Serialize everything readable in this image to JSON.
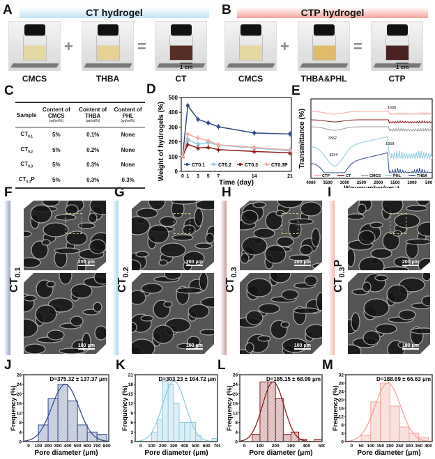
{
  "panels": {
    "A": "A",
    "B": "B",
    "C": "C",
    "D": "D",
    "E": "E",
    "F": "F",
    "G": "G",
    "H": "H",
    "I": "I",
    "J": "J",
    "K": "K",
    "L": "L",
    "M": "M"
  },
  "panel_a": {
    "title": "CT hydrogel",
    "banner_color": "#bfe3f5",
    "labels": [
      "CMCS",
      "THBA",
      "CT"
    ],
    "operators": [
      "+",
      "="
    ],
    "scale": "1 cm"
  },
  "panel_b": {
    "title": "CTP hydrogel",
    "banner_color": "#f5a59a",
    "labels": [
      "CMCS",
      "THBA&PHL",
      "CTP"
    ],
    "operators": [
      "+",
      "="
    ],
    "scale": "1 cm"
  },
  "table": {
    "headers": [
      {
        "t": "Sample",
        "s": ""
      },
      {
        "t": "Content of CMCS",
        "s": "(wt/vol%)"
      },
      {
        "t": "Content of THBA",
        "s": "(wt/vol%)"
      },
      {
        "t": "Content of PHL",
        "s": "(wt/vol%)"
      }
    ],
    "rows": [
      [
        "CT",
        "0.1",
        "",
        "5%",
        "0.1%",
        "None"
      ],
      [
        "CT",
        "0.2",
        "",
        "5%",
        "0.2%",
        "None"
      ],
      [
        "CT",
        "0.3",
        "",
        "5%",
        "0.3%",
        "None"
      ],
      [
        "CT",
        "0.3",
        "P",
        "5%",
        "0.3%",
        "0.3%"
      ]
    ]
  },
  "sem": [
    {
      "label": "CT",
      "sub": "0.1",
      "suffix": "",
      "bar_color": "#9aa3c7",
      "scale_top": "200 μm",
      "scale_bottom": "100 μm"
    },
    {
      "label": "CT",
      "sub": "0.2",
      "suffix": "",
      "bar_color": "#a8d8ec",
      "scale_top": "200 μm",
      "scale_bottom": "100 μm"
    },
    {
      "label": "CT",
      "sub": "0.3",
      "suffix": "",
      "bar_color": "#c99a9a",
      "scale_top": "200 μm",
      "scale_bottom": "100 μm"
    },
    {
      "label": "CT",
      "sub": "0.3",
      "suffix": "P",
      "bar_color": "#f3b8ae",
      "scale_top": "200 μm",
      "scale_bottom": "100 μm"
    }
  ],
  "chart_data": [
    {
      "id": "D",
      "type": "line",
      "xlabel": "Time (day)",
      "ylabel": "Weight of hydrogels (%)",
      "xlim": [
        0,
        21
      ],
      "ylim": [
        0,
        500
      ],
      "xticks": [
        0,
        1,
        3,
        5,
        7,
        14,
        21
      ],
      "yticks": [
        0,
        100,
        200,
        300,
        400,
        500
      ],
      "legend": "bottom",
      "x": [
        0,
        1,
        3,
        5,
        7,
        14,
        21
      ],
      "series": [
        {
          "name": "CT0.1",
          "color": "#2f4a8a",
          "marker": "circle",
          "values": [
            100,
            445,
            352,
            328,
            302,
            260,
            253
          ]
        },
        {
          "name": "CT0.2",
          "color": "#8ccbdf",
          "marker": "square",
          "values": [
            100,
            215,
            183,
            197,
            177,
            158,
            140
          ]
        },
        {
          "name": "CT0.3",
          "color": "#8b1a1a",
          "marker": "triangle",
          "values": [
            100,
            183,
            158,
            163,
            147,
            135,
            125
          ]
        },
        {
          "name": "CT0.3P",
          "color": "#f4aaa0",
          "marker": "diamond",
          "values": [
            100,
            252,
            225,
            207,
            180,
            162,
            145
          ]
        }
      ]
    },
    {
      "id": "E",
      "type": "line",
      "xlabel": "Wavenumber/cm⁻¹",
      "ylabel": "Transmittance (%)",
      "xlim": [
        4000,
        400
      ],
      "xticks": [
        4000,
        3500,
        3000,
        2500,
        2000,
        1500,
        1000,
        500
      ],
      "annotations": [
        "1600",
        "3362",
        "3244",
        "1658"
      ],
      "series": [
        {
          "name": "CTP",
          "color": "#f4aaa0"
        },
        {
          "name": "CT",
          "color": "#8b1a1a"
        },
        {
          "name": "CMCS",
          "color": "#999999"
        },
        {
          "name": "PHL",
          "color": "#8ccbdf"
        },
        {
          "name": "THBA",
          "color": "#2f4a8a"
        }
      ]
    },
    {
      "id": "J",
      "type": "bar",
      "annotation": "D=375.32 ± 137.37 μm",
      "xlabel": "Pore diameter (μm)",
      "ylabel": "Frequency (%)",
      "color": "#2f4a8a",
      "fill": "#d3d9e6",
      "xlim": [
        -50,
        820
      ],
      "ylim": [
        0,
        28
      ],
      "xticks": [
        0,
        100,
        200,
        300,
        400,
        500,
        600,
        700,
        800
      ],
      "yticks": [
        0,
        4,
        8,
        12,
        16,
        20,
        24,
        28
      ],
      "mean": 375.32,
      "sd": 137.37,
      "bins": [
        [
          100,
          200,
          7
        ],
        [
          200,
          300,
          18
        ],
        [
          300,
          400,
          24
        ],
        [
          400,
          500,
          17
        ],
        [
          500,
          600,
          7
        ],
        [
          600,
          700,
          4
        ],
        [
          700,
          800,
          3
        ]
      ]
    },
    {
      "id": "K",
      "type": "bar",
      "annotation": "D=303.23 ± 104.72 μm",
      "xlabel": "Pore diameter (μm)",
      "ylabel": "Frequency (%)",
      "color": "#8ccbdf",
      "fill": "#e3f2f8",
      "xlim": [
        -50,
        700
      ],
      "ylim": [
        0,
        21
      ],
      "xticks": [
        0,
        100,
        200,
        300,
        400,
        500,
        600,
        700
      ],
      "yticks": [
        0,
        3,
        6,
        9,
        12,
        15,
        18,
        21
      ],
      "mean": 303.23,
      "sd": 104.72,
      "bins": [
        [
          100,
          150,
          3
        ],
        [
          150,
          200,
          7
        ],
        [
          200,
          250,
          19
        ],
        [
          250,
          300,
          18
        ],
        [
          300,
          350,
          12
        ],
        [
          350,
          400,
          6
        ],
        [
          400,
          450,
          6
        ],
        [
          450,
          500,
          6
        ],
        [
          500,
          550,
          2
        ],
        [
          650,
          700,
          1
        ]
      ]
    },
    {
      "id": "L",
      "type": "bar",
      "annotation": "D=185.15 ± 68.99 μm",
      "xlabel": "Pore diameter (μm)",
      "ylabel": "Frequency (%)",
      "color": "#8b1a1a",
      "fill": "#e6d0d0",
      "xlim": [
        -30,
        500
      ],
      "ylim": [
        0,
        28
      ],
      "xticks": [
        0,
        100,
        200,
        300,
        400,
        500
      ],
      "yticks": [
        0,
        4,
        8,
        12,
        16,
        20,
        24,
        28
      ],
      "mean": 185.15,
      "sd": 68.99,
      "bins": [
        [
          50,
          100,
          3
        ],
        [
          100,
          150,
          25
        ],
        [
          150,
          200,
          25
        ],
        [
          200,
          250,
          18
        ],
        [
          250,
          300,
          3
        ],
        [
          300,
          350,
          4
        ],
        [
          350,
          400,
          1
        ],
        [
          450,
          500,
          1
        ]
      ]
    },
    {
      "id": "M",
      "type": "bar",
      "annotation": "D=188.69 ± 66.63 μm",
      "xlabel": "Pore diameter (μm)",
      "ylabel": "Frequency (%)",
      "color": "#f0a49a",
      "fill": "#fbe6e3",
      "xlim": [
        -30,
        420
      ],
      "ylim": [
        0,
        32
      ],
      "xticks": [
        0,
        50,
        100,
        150,
        200,
        250,
        300,
        350,
        400
      ],
      "yticks": [
        0,
        4,
        8,
        12,
        16,
        20,
        24,
        28,
        32
      ],
      "mean": 188.69,
      "sd": 66.63,
      "bins": [
        [
          50,
          100,
          3
        ],
        [
          100,
          150,
          19
        ],
        [
          150,
          200,
          28
        ],
        [
          200,
          250,
          17
        ],
        [
          250,
          300,
          7
        ],
        [
          300,
          350,
          4
        ],
        [
          350,
          400,
          2
        ]
      ]
    }
  ]
}
